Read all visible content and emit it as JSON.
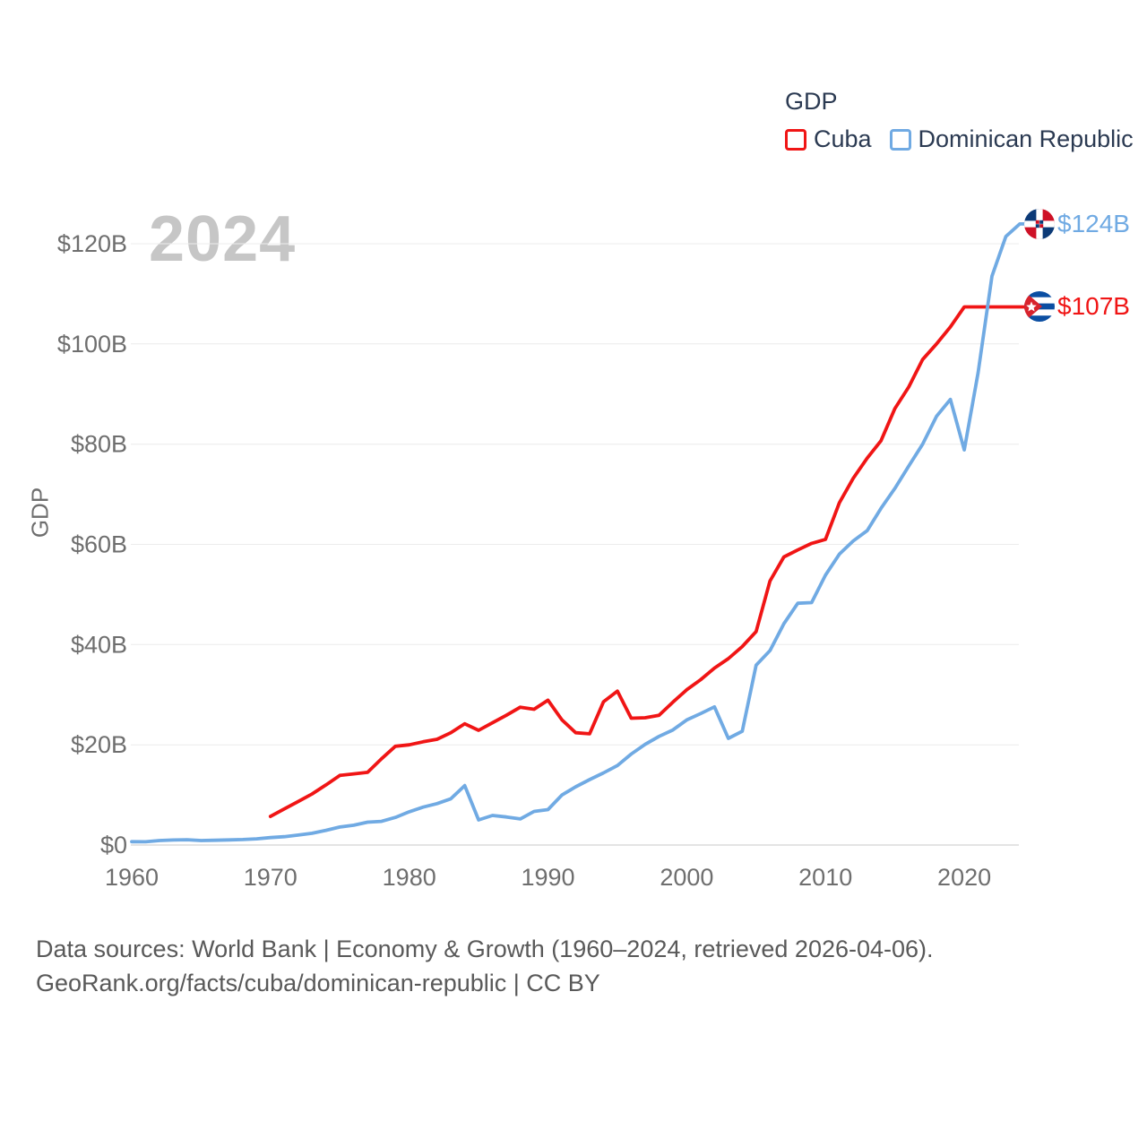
{
  "legend": {
    "title": "GDP",
    "items": [
      {
        "label": "Cuba",
        "color": "#f01515"
      },
      {
        "label": "Dominican Republic",
        "color": "#70aae3"
      }
    ]
  },
  "watermark": "2024",
  "ylabel": "GDP",
  "end_labels": {
    "dominican_republic": "$124B",
    "cuba": "$107B"
  },
  "footer": {
    "line1": "Data sources: World Bank | Economy & Growth (1960–2024, retrieved 2026-04-06).",
    "line2": "GeoRank.org/facts/cuba/dominican-republic | CC BY"
  },
  "chart_data": {
    "type": "line",
    "title": "GDP",
    "xlabel": "",
    "ylabel": "GDP",
    "xlim": [
      1960,
      2024
    ],
    "ylim": [
      0,
      130
    ],
    "grid": "horizontal",
    "legend_position": "top-right",
    "y_ticks": [
      {
        "value": 0,
        "label": "$0"
      },
      {
        "value": 20,
        "label": "$20B"
      },
      {
        "value": 40,
        "label": "$40B"
      },
      {
        "value": 60,
        "label": "$60B"
      },
      {
        "value": 80,
        "label": "$80B"
      },
      {
        "value": 100,
        "label": "$100B"
      },
      {
        "value": 120,
        "label": "$120B"
      }
    ],
    "x_ticks": [
      {
        "value": 1960,
        "label": "1960"
      },
      {
        "value": 1970,
        "label": "1970"
      },
      {
        "value": 1980,
        "label": "1980"
      },
      {
        "value": 1990,
        "label": "1990"
      },
      {
        "value": 2000,
        "label": "2000"
      },
      {
        "value": 2010,
        "label": "2010"
      },
      {
        "value": 2020,
        "label": "2020"
      }
    ],
    "series": [
      {
        "id": "cuba",
        "name": "Cuba",
        "color": "#f01515",
        "x_start": 1970,
        "end_label": "$107B",
        "values": [
          5.7,
          7.2,
          8.7,
          10.2,
          12.0,
          13.9,
          14.2,
          14.5,
          17.2,
          19.7,
          20.0,
          20.6,
          21.1,
          22.4,
          24.2,
          22.9,
          24.4,
          25.9,
          27.5,
          27.1,
          28.9,
          25.0,
          22.4,
          22.2,
          28.6,
          30.7,
          25.3,
          25.4,
          25.9,
          28.5,
          31.0,
          33.0,
          35.3,
          37.2,
          39.6,
          42.6,
          52.7,
          57.5,
          58.9,
          60.2,
          61.0,
          68.3,
          73.2,
          77.2,
          80.7,
          87.1,
          91.4,
          96.9,
          100.0,
          103.4,
          107.4,
          107.4,
          107.4,
          107.4,
          107.4
        ]
      },
      {
        "id": "dr",
        "name": "Dominican Republic",
        "color": "#70aae3",
        "x_start": 1960,
        "end_label": "$124B",
        "values": [
          0.67,
          0.64,
          0.9,
          1.0,
          1.05,
          0.89,
          0.95,
          1.02,
          1.09,
          1.23,
          1.49,
          1.67,
          1.99,
          2.34,
          2.93,
          3.6,
          3.95,
          4.56,
          4.73,
          5.5,
          6.63,
          7.57,
          8.27,
          9.22,
          11.85,
          5.0,
          5.9,
          5.6,
          5.2,
          6.7,
          7.07,
          9.97,
          11.62,
          13.06,
          14.39,
          15.87,
          18.16,
          20.08,
          21.67,
          22.96,
          24.96,
          26.24,
          27.57,
          21.29,
          22.69,
          35.89,
          38.81,
          44.17,
          48.25,
          48.38,
          53.86,
          58.05,
          60.69,
          62.73,
          67.21,
          71.16,
          75.63,
          79.99,
          85.56,
          88.94,
          78.85,
          94.24,
          113.54,
          121.44,
          123.96
        ]
      }
    ]
  }
}
